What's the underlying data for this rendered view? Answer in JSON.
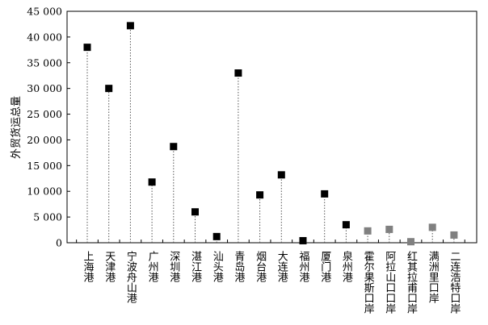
{
  "chart_data": {
    "type": "scatter",
    "ylabel": "外贸货运总量",
    "ylim": [
      0,
      45000
    ],
    "yticks": [
      "0",
      "5 000",
      "10 000",
      "15 000",
      "20 000",
      "25 000",
      "30 000",
      "35 000",
      "40 000",
      "45 000"
    ],
    "categories": [
      "上海港",
      "天津港",
      "宁波舟山港",
      "广州港",
      "深圳港",
      "湛江港",
      "汕头港",
      "青岛港",
      "烟台港",
      "大连港",
      "福州港",
      "厦门港",
      "泉州港",
      "霍尔果斯口岸",
      "阿拉山口口岸",
      "红其拉甫口岸",
      "满洲里口岸",
      "二连浩特口岸"
    ],
    "values": [
      38000,
      30000,
      42200,
      11800,
      18700,
      6000,
      1200,
      33000,
      9300,
      13200,
      400,
      9500,
      3500,
      2300,
      2600,
      200,
      3000,
      1500
    ],
    "groups": [
      "port",
      "port",
      "port",
      "port",
      "port",
      "port",
      "port",
      "port",
      "port",
      "port",
      "port",
      "port",
      "port",
      "land",
      "land",
      "land",
      "land",
      "land"
    ],
    "colors": {
      "port": "#000000",
      "land": "#808080",
      "axis": "#000000",
      "stem": "#555555"
    },
    "grid": false,
    "legend": "none"
  }
}
